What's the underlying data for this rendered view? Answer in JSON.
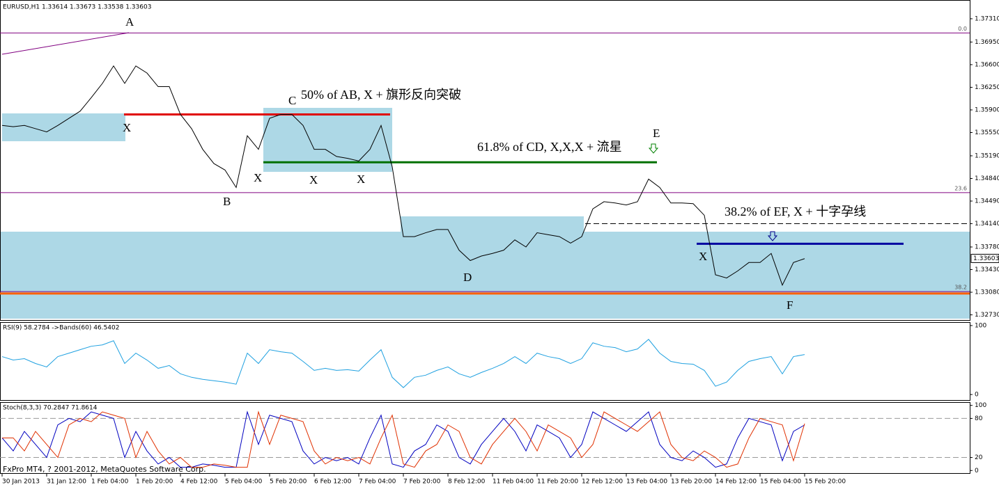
{
  "chart_data": [
    {
      "type": "line",
      "title": "EURUSD,H1  1.33614 1.33673 1.33538 1.33603",
      "categories": [
        "30 Jan 2013",
        null,
        null,
        null,
        "31 Jan 12:00",
        null,
        null,
        null,
        "1 Feb 04:00",
        null,
        null,
        null,
        "1 Feb 20:00",
        null,
        null,
        null,
        "4 Feb 12:00",
        null,
        null,
        null,
        "5 Feb 04:00",
        null,
        null,
        null,
        "5 Feb 20:00",
        null,
        null,
        null,
        "6 Feb 12:00",
        null,
        null,
        null,
        "7 Feb 04:00",
        null,
        null,
        null,
        "7 Feb 20:00",
        null,
        null,
        null,
        "8 Feb 12:00",
        null,
        null,
        null,
        "11 Feb 04:00",
        null,
        null,
        null,
        "11 Feb 20:00",
        null,
        null,
        null,
        "12 Feb 12:00",
        null,
        null,
        null,
        "13 Feb 04:00",
        null,
        null,
        null,
        "13 Feb 20:00",
        null,
        null,
        null,
        "14 Feb 12:00",
        null,
        null,
        null,
        "15 Feb 04:00",
        null,
        null,
        null,
        "15 Feb 20:00"
      ],
      "series": [
        {
          "color": "#000000",
          "values": [
            1.3566,
            1.3564,
            1.3566,
            1.3561,
            1.3556,
            1.3566,
            1.3577,
            1.3588,
            1.3609,
            1.3631,
            1.3658,
            1.3631,
            1.3658,
            1.3647,
            1.3626,
            1.3626,
            1.3583,
            1.3561,
            1.3529,
            1.3507,
            1.3497,
            1.347,
            1.355,
            1.3529,
            1.3577,
            1.3583,
            1.3583,
            1.3566,
            1.3529,
            1.3529,
            1.3518,
            1.3515,
            1.3511,
            1.3529,
            1.3566,
            1.3502,
            1.3394,
            1.3394,
            1.34,
            1.3405,
            1.3405,
            1.3373,
            1.3357,
            1.3364,
            1.3368,
            1.3373,
            1.3389,
            1.3378,
            1.34,
            1.3397,
            1.3394,
            1.3384,
            1.3394,
            1.3437,
            1.3448,
            1.3446,
            1.3443,
            1.3448,
            1.3483,
            1.347,
            1.3446,
            1.3446,
            1.3445,
            1.3427,
            1.3335,
            1.333,
            1.3341,
            1.3354,
            1.3354,
            1.3368,
            1.3319,
            1.3354,
            1.336
          ]
        }
      ],
      "ylim": [
        1.3265,
        1.376
      ],
      "yticks": [
        {
          "value": 1.3731,
          "label": "1.37310"
        },
        {
          "value": 1.3695,
          "label": "1.36950"
        },
        {
          "value": 1.366,
          "label": "1.36600"
        },
        {
          "value": 1.3625,
          "label": "1.36250"
        },
        {
          "value": 1.359,
          "label": "1.35900"
        },
        {
          "value": 1.3555,
          "label": "1.35550"
        },
        {
          "value": 1.3519,
          "label": "1.35190"
        },
        {
          "value": 1.3484,
          "label": "1.34840"
        },
        {
          "value": 1.3449,
          "label": "1.34490"
        },
        {
          "value": 1.3414,
          "label": "1.34140"
        },
        {
          "value": 1.3378,
          "label": "1.33780"
        },
        {
          "value": 1.3343,
          "label": "1.33430"
        },
        {
          "value": 1.3308,
          "label": "1.33080"
        },
        {
          "value": 1.3273,
          "label": "1.32730"
        }
      ],
      "last_price": 1.33603,
      "levels": [
        {
          "value": 1.3583,
          "color": "#e00000"
        },
        {
          "value": 1.3509,
          "color": "#007000"
        },
        {
          "value": 1.3383,
          "color": "#0000a0"
        },
        {
          "value": 1.3414,
          "color": "#000000",
          "dash": true
        },
        {
          "value": 1.3306,
          "color": "#ff6000"
        }
      ],
      "fib_levels": [
        {
          "value": 1.3709,
          "label": "0.0"
        },
        {
          "value": 1.3462,
          "label": "23.6"
        },
        {
          "value": 1.3309,
          "label": "38.2"
        }
      ],
      "annotations": [
        "A",
        "X",
        "B",
        "C",
        "X",
        "X",
        "X",
        "50% of AB, X + 旗形反向突破",
        "61.8% of CD, X,X,X + 流星",
        "D",
        "E",
        "X",
        "38.2% of EF, X + 十字孕线",
        "F"
      ]
    },
    {
      "type": "line",
      "title": "RSI(9) 58.2784  ->Bands(60) 46.5402",
      "series": [
        {
          "color": "#1ea0e0",
          "values": [
            55,
            50,
            52,
            45,
            40,
            55,
            60,
            65,
            70,
            72,
            78,
            45,
            60,
            50,
            38,
            42,
            30,
            25,
            22,
            20,
            18,
            15,
            60,
            45,
            65,
            62,
            60,
            48,
            35,
            38,
            35,
            36,
            34,
            50,
            65,
            25,
            10,
            25,
            28,
            35,
            40,
            30,
            25,
            32,
            38,
            45,
            55,
            45,
            60,
            55,
            52,
            45,
            52,
            75,
            70,
            68,
            62,
            66,
            80,
            60,
            48,
            45,
            44,
            35,
            12,
            18,
            35,
            48,
            52,
            55,
            30,
            55,
            58
          ]
        }
      ],
      "ylim": [
        -8,
        105
      ],
      "yticks": [
        100,
        0
      ]
    },
    {
      "type": "line",
      "title": "Stoch(8,3,3) 70.2847 71.8614",
      "series": [
        {
          "color": "#0000c0",
          "values": [
            50,
            30,
            60,
            40,
            20,
            70,
            80,
            75,
            90,
            85,
            80,
            20,
            60,
            30,
            10,
            20,
            5,
            5,
            10,
            8,
            5,
            5,
            90,
            40,
            85,
            80,
            75,
            30,
            10,
            20,
            15,
            20,
            10,
            50,
            85,
            10,
            5,
            30,
            40,
            70,
            60,
            20,
            10,
            40,
            60,
            80,
            60,
            30,
            70,
            60,
            50,
            20,
            40,
            90,
            80,
            70,
            60,
            75,
            90,
            40,
            20,
            15,
            30,
            20,
            5,
            10,
            50,
            80,
            75,
            70,
            15,
            60,
            70
          ]
        },
        {
          "color": "#e03000",
          "values": [
            50,
            50,
            30,
            60,
            40,
            20,
            70,
            80,
            75,
            90,
            85,
            80,
            20,
            60,
            30,
            10,
            20,
            5,
            5,
            10,
            8,
            5,
            5,
            90,
            40,
            85,
            80,
            75,
            30,
            10,
            20,
            15,
            20,
            10,
            50,
            85,
            10,
            5,
            30,
            40,
            70,
            60,
            20,
            10,
            40,
            60,
            80,
            60,
            30,
            70,
            60,
            50,
            20,
            40,
            90,
            80,
            70,
            60,
            75,
            90,
            40,
            20,
            15,
            30,
            20,
            5,
            10,
            50,
            80,
            75,
            70,
            15,
            72
          ]
        }
      ],
      "ylim": [
        -4,
        105
      ],
      "yticks": [
        100,
        80,
        20,
        0
      ],
      "levels": [
        {
          "value": 80,
          "color": "#999999",
          "dash": true
        },
        {
          "value": 20,
          "color": "#999999",
          "dash": true
        }
      ]
    }
  ],
  "footer": "FxPro MT4, ? 2001-2012, MetaQuotes Software Corp."
}
